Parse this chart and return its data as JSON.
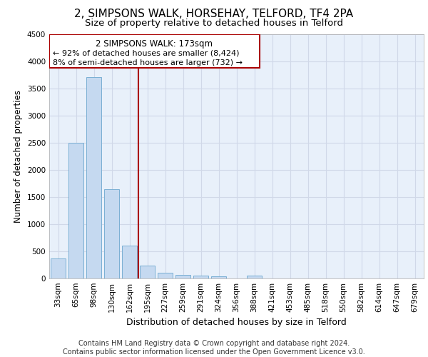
{
  "title": "2, SIMPSONS WALK, HORSEHAY, TELFORD, TF4 2PA",
  "subtitle": "Size of property relative to detached houses in Telford",
  "xlabel": "Distribution of detached houses by size in Telford",
  "ylabel": "Number of detached properties",
  "categories": [
    "33sqm",
    "65sqm",
    "98sqm",
    "130sqm",
    "162sqm",
    "195sqm",
    "227sqm",
    "259sqm",
    "291sqm",
    "324sqm",
    "356sqm",
    "388sqm",
    "421sqm",
    "453sqm",
    "485sqm",
    "518sqm",
    "550sqm",
    "582sqm",
    "614sqm",
    "647sqm",
    "679sqm"
  ],
  "values": [
    370,
    2500,
    3700,
    1640,
    600,
    240,
    105,
    65,
    55,
    40,
    0,
    55,
    0,
    0,
    0,
    0,
    0,
    0,
    0,
    0,
    0
  ],
  "bar_color": "#c5d9f0",
  "bar_edgecolor": "#7aafd4",
  "vline_x_idx": 4,
  "vline_color": "#aa0000",
  "ann_line1": "2 SIMPSONS WALK: 173sqm",
  "ann_line2": "← 92% of detached houses are smaller (8,424)",
  "ann_line3": "8% of semi-detached houses are larger (732) →",
  "annotation_box_color": "#aa0000",
  "ylim": [
    0,
    4500
  ],
  "yticks": [
    0,
    500,
    1000,
    1500,
    2000,
    2500,
    3000,
    3500,
    4000,
    4500
  ],
  "grid_color": "#d0d8e8",
  "bg_color": "#e8f0fa",
  "footer": "Contains HM Land Registry data © Crown copyright and database right 2024.\nContains public sector information licensed under the Open Government Licence v3.0.",
  "title_fontsize": 11,
  "subtitle_fontsize": 9.5,
  "xlabel_fontsize": 9,
  "ylabel_fontsize": 8.5,
  "tick_fontsize": 7.5,
  "footer_fontsize": 7,
  "ann_fontsize": 8.5
}
